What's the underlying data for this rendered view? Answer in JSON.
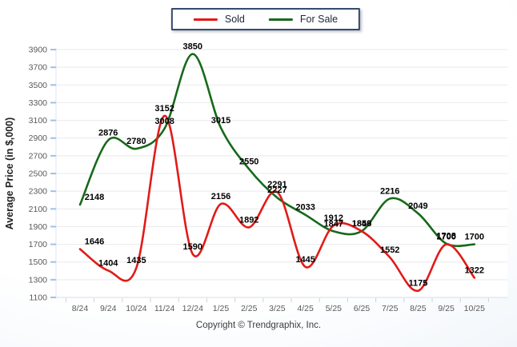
{
  "page": {
    "footer": "Copyright © Trendgraphix, Inc."
  },
  "legend": {
    "items": [
      {
        "label": "Sold",
        "color": "#e01b18"
      },
      {
        "label": "For Sale",
        "color": "#17691b"
      }
    ]
  },
  "chart_data": {
    "type": "line",
    "title": "",
    "xlabel": "",
    "ylabel": "Average Price (in $,000)",
    "categories": [
      "8/24",
      "9/24",
      "10/24",
      "11/24",
      "12/24",
      "1/25",
      "2/25",
      "3/25",
      "4/25",
      "5/25",
      "6/25",
      "7/25",
      "8/25",
      "9/25",
      "10/25"
    ],
    "series": [
      {
        "name": "Sold",
        "color": "#e01b18",
        "values": [
          1646,
          1404,
          1435,
          3152,
          1590,
          2156,
          1892,
          2291,
          1445,
          1912,
          1848,
          1552,
          1175,
          1700,
          1322
        ]
      },
      {
        "name": "For Sale",
        "color": "#17691b",
        "values": [
          2148,
          2876,
          2780,
          3008,
          3850,
          3015,
          2550,
          2227,
          2033,
          1847,
          1850,
          2216,
          2049,
          1708,
          1700
        ]
      }
    ],
    "ylim": [
      1100,
      3900
    ],
    "y_ticks": [
      1100,
      1300,
      1500,
      1700,
      1900,
      2100,
      2300,
      2500,
      2700,
      2900,
      3100,
      3300,
      3500,
      3700,
      3900
    ],
    "grid": "horizontal",
    "legend_position": "top-center",
    "smooth": true,
    "gridline_color": "#e9e9e9",
    "axis_tick_color": "#9cc3ea",
    "x_tick_color": "#c6d2e0",
    "data_label_color": "#000000"
  }
}
